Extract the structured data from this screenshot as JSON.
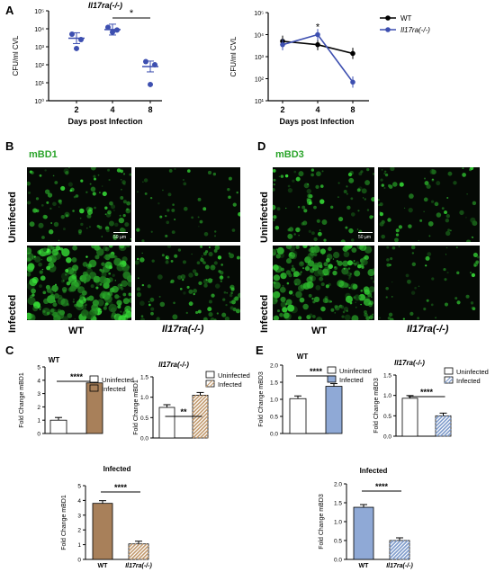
{
  "panels": {
    "A": "A",
    "B": "B",
    "C": "C",
    "D": "D",
    "E": "E"
  },
  "colors": {
    "wt": "#000000",
    "ko": "#3d4fb0",
    "green": "#35c935",
    "infected_wt": "#a8805a",
    "infected_mbd3": "#8fa9d6",
    "hatch_mbd1": "#c29a6e",
    "hatch_mbd3": "#7f9ccc"
  },
  "chart_data": [
    {
      "id": "A1",
      "type": "scatter",
      "title": "Il17ra(-/-)",
      "xlabel": "Days post Infection",
      "ylabel": "CFU/ml CVL",
      "yscale": "log",
      "ylim": [
        1,
        100000
      ],
      "categories": [
        "2",
        "4",
        "8"
      ],
      "yticks": [
        "10⁰",
        "10¹",
        "10²",
        "10³",
        "10⁴",
        "10⁵"
      ],
      "points": [
        [
          2,
          5000
        ],
        [
          2,
          2500
        ],
        [
          2,
          800
        ],
        [
          4,
          12000
        ],
        [
          4,
          8500
        ],
        [
          4,
          6500
        ],
        [
          8,
          150
        ],
        [
          8,
          100
        ],
        [
          8,
          8
        ]
      ],
      "mean": [
        3000,
        9000,
        80
      ],
      "significance": [
        {
          "from": "4",
          "to": "8",
          "label": "*"
        }
      ]
    },
    {
      "id": "A2",
      "type": "line",
      "xlabel": "Days post Infection",
      "ylabel": "CFU/ml CVL",
      "yscale": "log",
      "ylim": [
        10,
        100000
      ],
      "x": [
        "2",
        "4",
        "8"
      ],
      "yticks": [
        "10¹",
        "10²",
        "10³",
        "10⁴",
        "10⁵"
      ],
      "series": [
        {
          "name": "WT",
          "values": [
            5000,
            3500,
            1400
          ]
        },
        {
          "name": "Il17ra(-/-)",
          "values": [
            3500,
            10000,
            70
          ]
        }
      ],
      "significance": [
        {
          "at": "4",
          "label": "*"
        }
      ]
    },
    {
      "id": "C1",
      "type": "bar",
      "title": "WT",
      "ylabel": "Fold Change mBD1",
      "ylim": [
        0,
        5
      ],
      "yticks": [
        "0",
        "1",
        "2",
        "3",
        "4",
        "5"
      ],
      "categories": [
        "Uninfected",
        "Infected"
      ],
      "values": [
        1.0,
        3.8
      ],
      "legend": [
        "Uninfected",
        "Infected"
      ],
      "significance": "****"
    },
    {
      "id": "C2",
      "type": "bar",
      "title": "Il17ra(-/-)",
      "ylabel": "Fold Change mBD1",
      "ylim": [
        0,
        1.5
      ],
      "yticks": [
        "0.0",
        "0.5",
        "1.0",
        "1.5"
      ],
      "categories": [
        "Uninfected",
        "Infected"
      ],
      "values": [
        0.75,
        1.05
      ],
      "legend": [
        "Uninfected",
        "Infected"
      ],
      "significance": "**"
    },
    {
      "id": "C3",
      "type": "bar",
      "title": "Infected",
      "ylabel": "Fold Change mBD1",
      "ylim": [
        0,
        5
      ],
      "yticks": [
        "0",
        "1",
        "2",
        "3",
        "4",
        "5"
      ],
      "categories": [
        "WT",
        "Il17ra(-/-)"
      ],
      "values": [
        3.8,
        1.05
      ],
      "significance": "****"
    },
    {
      "id": "E1",
      "type": "bar",
      "title": "WT",
      "ylabel": "Fold Change mBD3",
      "ylim": [
        0,
        2.0
      ],
      "yticks": [
        "0.0",
        "0.5",
        "1.0",
        "1.5",
        "2.0"
      ],
      "categories": [
        "Uninfected",
        "Infected"
      ],
      "values": [
        1.02,
        1.38
      ],
      "legend": [
        "Uninfected",
        "Infected"
      ],
      "significance": "****"
    },
    {
      "id": "E2",
      "type": "bar",
      "title": "Il17ra(-/-)",
      "ylabel": "Fold Change mBD3",
      "ylim": [
        0,
        1.5
      ],
      "yticks": [
        "0.0",
        "0.5",
        "1.0",
        "1.5"
      ],
      "categories": [
        "Uninfected",
        "Infected"
      ],
      "values": [
        0.93,
        0.5
      ],
      "legend": [
        "Uninfected",
        "Infected"
      ],
      "significance": "****"
    },
    {
      "id": "E3",
      "type": "bar",
      "title": "Infected",
      "ylabel": "Fold Change mBD3",
      "ylim": [
        0,
        2.0
      ],
      "yticks": [
        "0.0",
        "0.5",
        "1.0",
        "1.5",
        "2.0"
      ],
      "categories": [
        "WT",
        "Il17ra(-/-)"
      ],
      "values": [
        1.38,
        0.5
      ],
      "significance": "****"
    }
  ],
  "micrographs": {
    "B": {
      "stain": "mBD1",
      "rows": [
        "Uninfected",
        "Infected"
      ],
      "cols": [
        "WT",
        "Il17ra(-/-)"
      ],
      "scale": "50 µm"
    },
    "D": {
      "stain": "mBD3",
      "rows": [
        "Uninfected",
        "Infected"
      ],
      "cols": [
        "WT",
        "Il17ra(-/-)"
      ],
      "scale": "50 µm"
    }
  }
}
